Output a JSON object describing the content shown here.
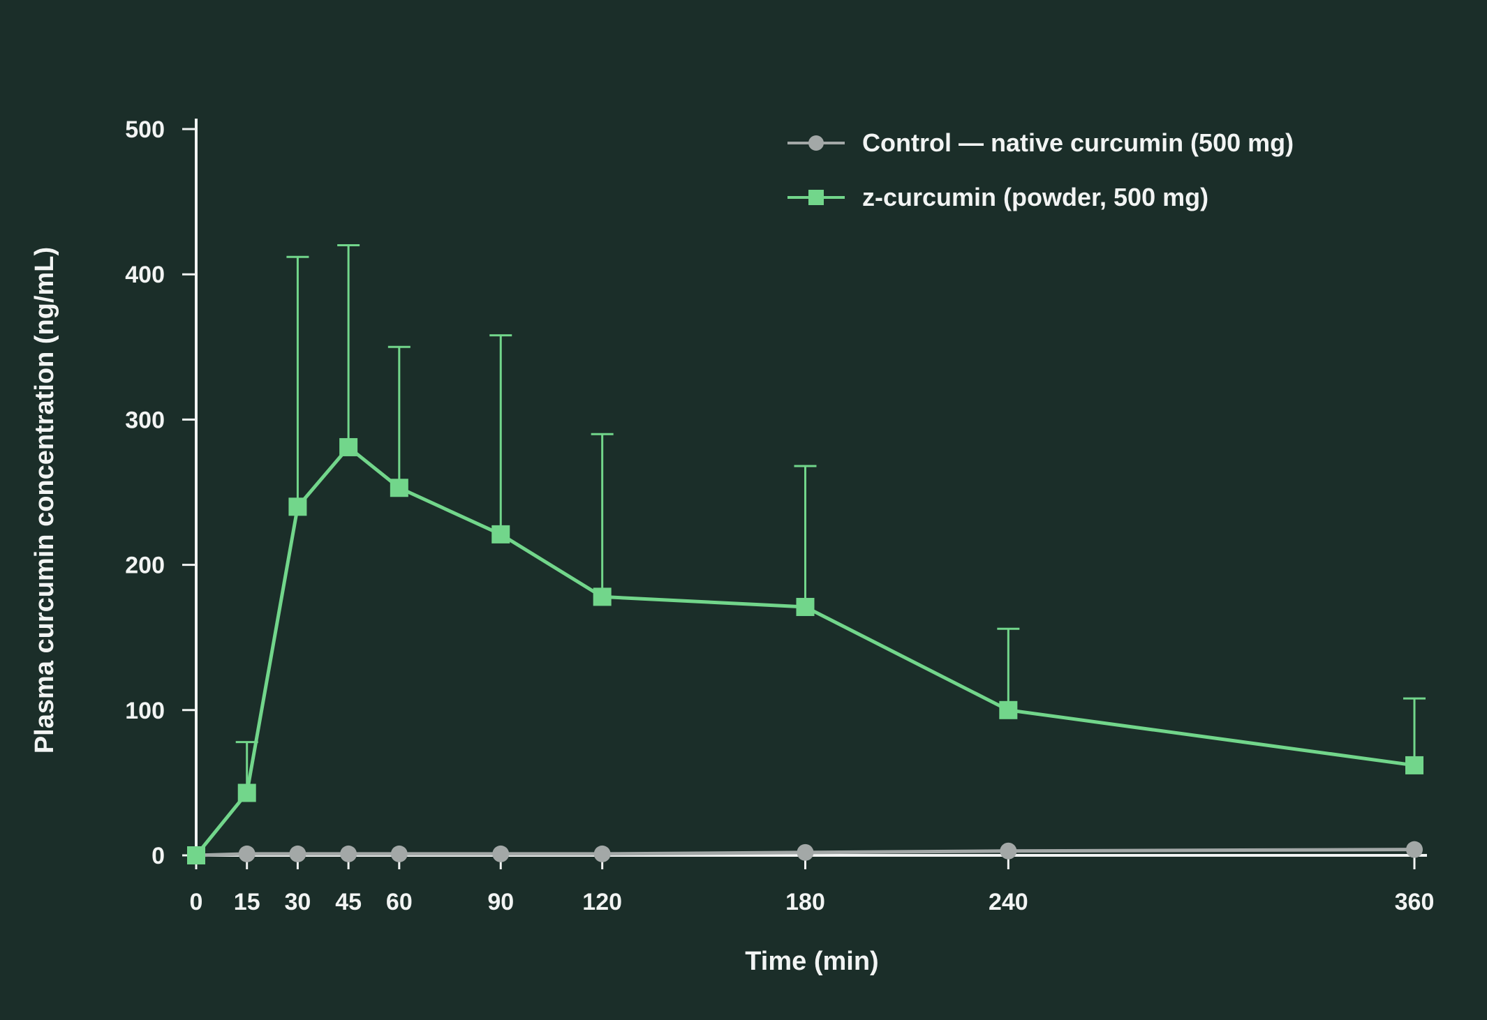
{
  "colors": {
    "background": "#1b2e29",
    "axis": "#f2f4f3",
    "control": "#a3a8a7",
    "zcurcumin": "#72d68b"
  },
  "chart_data": {
    "type": "line",
    "xlabel": "Time (min)",
    "ylabel": "Plasma curcumin concentration (ng/mL)",
    "xlim": [
      0,
      360
    ],
    "ylim": [
      0,
      500
    ],
    "x_ticks": [
      0,
      15,
      30,
      45,
      60,
      90,
      120,
      180,
      240,
      360
    ],
    "y_ticks": [
      0,
      100,
      200,
      300,
      400,
      500
    ],
    "grid": false,
    "legend_position": "top-right",
    "series": [
      {
        "name": "Control — native curcumin (500 mg)",
        "marker": "circle",
        "color": "#a3a8a7",
        "x": [
          0,
          15,
          30,
          45,
          60,
          90,
          120,
          180,
          240,
          360
        ],
        "values": [
          0,
          1,
          1,
          1,
          1,
          1,
          1,
          2,
          3,
          4
        ],
        "error_upper": []
      },
      {
        "name": "z-curcumin (powder, 500 mg)",
        "marker": "square",
        "color": "#72d68b",
        "x": [
          0,
          15,
          30,
          45,
          60,
          90,
          120,
          180,
          240,
          360
        ],
        "values": [
          0,
          43,
          240,
          281,
          253,
          221,
          178,
          171,
          100,
          62
        ],
        "error_upper": [
          0,
          78,
          412,
          420,
          350,
          358,
          290,
          268,
          156,
          108
        ]
      }
    ]
  }
}
